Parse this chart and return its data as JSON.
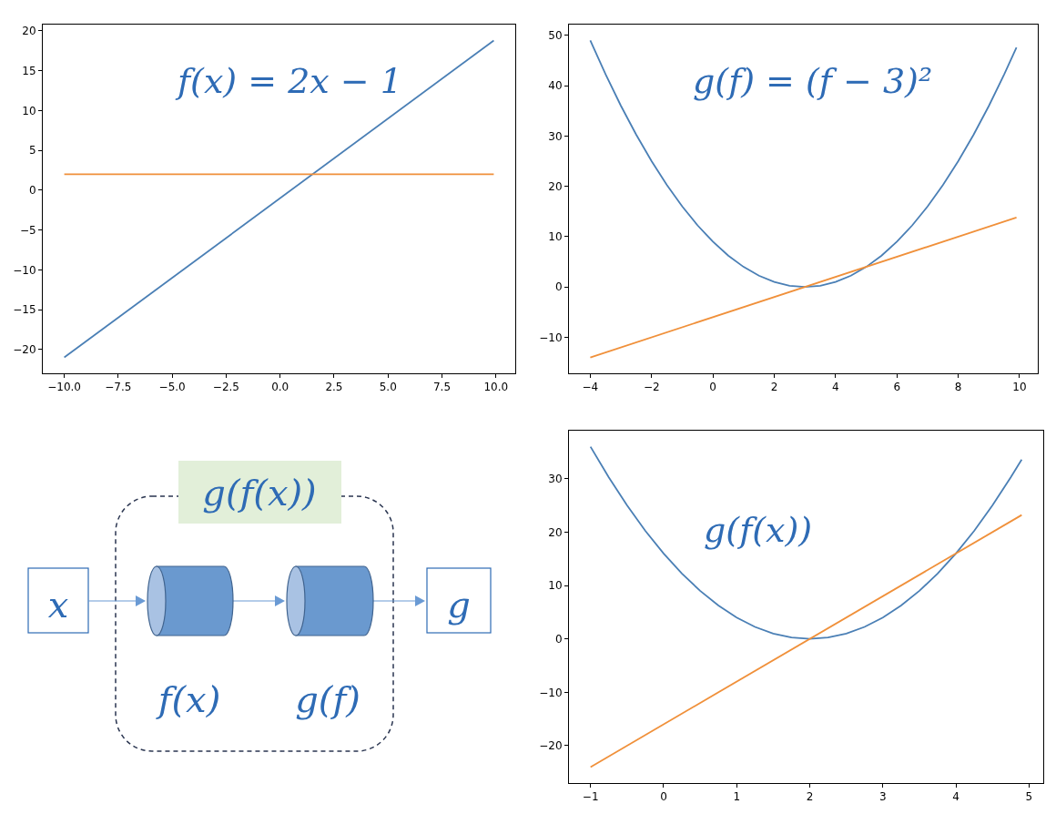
{
  "chart_data": [
    {
      "type": "line",
      "annotations": [
        "f(x) = 2x − 1"
      ],
      "grid": false,
      "legend": false,
      "marker": "none",
      "line_style": "solid",
      "xlim": [
        -10.995,
        10.895
      ],
      "ylim": [
        -22.99,
        20.79
      ],
      "xticks": [
        {
          "value": -10,
          "label": "−10.0"
        },
        {
          "value": -7.5,
          "label": "−7.5"
        },
        {
          "value": -5,
          "label": "−5.0"
        },
        {
          "value": -2.5,
          "label": "−2.5"
        },
        {
          "value": 0,
          "label": "0.0"
        },
        {
          "value": 2.5,
          "label": "2.5"
        },
        {
          "value": 5,
          "label": "5.0"
        },
        {
          "value": 7.5,
          "label": "7.5"
        },
        {
          "value": 10,
          "label": "10.0"
        }
      ],
      "yticks": [
        {
          "value": -20,
          "label": "−20"
        },
        {
          "value": -15,
          "label": "−15"
        },
        {
          "value": -10,
          "label": "−10"
        },
        {
          "value": -5,
          "label": "−5"
        },
        0,
        5,
        10,
        15,
        20
      ],
      "series": [
        {
          "color": "#4a7fb5",
          "x": [
            -10,
            9.9
          ],
          "values": [
            -21,
            18.8
          ]
        },
        {
          "color": "#f0903a",
          "x": [
            -10,
            9.9
          ],
          "values": [
            2,
            2
          ]
        }
      ]
    },
    {
      "type": "line",
      "annotations": [
        "g(f) = (f − 3)²"
      ],
      "grid": false,
      "legend": false,
      "marker": "none",
      "line_style": "solid",
      "xlim": [
        -4.695,
        10.595
      ],
      "ylim": [
        -17.15,
        52.15
      ],
      "xticks": [
        {
          "value": -4,
          "label": "−4"
        },
        {
          "value": -2,
          "label": "−2"
        },
        0,
        2,
        4,
        6,
        8,
        10
      ],
      "yticks": [
        {
          "value": -10,
          "label": "−10"
        },
        0,
        10,
        20,
        30,
        40,
        50
      ],
      "series": [
        {
          "color": "#4a7fb5",
          "x": [
            -4,
            -3.5,
            -3,
            -2.5,
            -2,
            -1.5,
            -1,
            -0.5,
            0,
            0.5,
            1,
            1.5,
            2,
            2.5,
            3,
            3.5,
            4,
            4.5,
            5,
            5.5,
            6,
            6.5,
            7,
            7.5,
            8,
            8.5,
            9,
            9.5,
            9.9
          ],
          "values": [
            49,
            42.25,
            36,
            30.25,
            25,
            20.25,
            16,
            12.25,
            9,
            6.25,
            4,
            2.25,
            1,
            0.25,
            0,
            0.25,
            1,
            2.25,
            4,
            6.25,
            9,
            12.25,
            16,
            20.25,
            25,
            30.25,
            36,
            42.25,
            47.6
          ]
        },
        {
          "color": "#f0903a",
          "x": [
            -4,
            9.9
          ],
          "values": [
            -14,
            13.8
          ]
        }
      ]
    },
    {
      "type": "other",
      "annotations": [
        "g(f(x))",
        "x",
        "f(x)",
        "g(f)",
        "g"
      ]
    },
    {
      "type": "line",
      "annotations": [
        "g(f(x))"
      ],
      "grid": false,
      "legend": false,
      "marker": "none",
      "line_style": "solid",
      "xlim": [
        -1.295,
        5.195
      ],
      "ylim": [
        -27,
        39
      ],
      "xticks": [
        {
          "value": -1,
          "label": "−1"
        },
        0,
        1,
        2,
        3,
        4,
        5
      ],
      "yticks": [
        {
          "value": -20,
          "label": "−20"
        },
        {
          "value": -10,
          "label": "−10"
        },
        0,
        10,
        20,
        30
      ],
      "series": [
        {
          "color": "#4a7fb5",
          "x": [
            -1,
            -0.75,
            -0.5,
            -0.25,
            0,
            0.25,
            0.5,
            0.75,
            1,
            1.25,
            1.5,
            1.75,
            2,
            2.25,
            2.5,
            2.75,
            3,
            3.25,
            3.5,
            3.75,
            4,
            4.25,
            4.5,
            4.75,
            4.9
          ],
          "values": [
            36,
            30.25,
            25,
            20.25,
            16,
            12.25,
            9,
            6.25,
            4,
            2.25,
            1,
            0.25,
            0,
            0.25,
            1,
            2.25,
            4,
            6.25,
            9,
            12.25,
            16,
            20.25,
            25,
            30.25,
            33.6
          ]
        },
        {
          "color": "#f0903a",
          "x": [
            -1,
            4.9
          ],
          "values": [
            -24,
            23.2
          ]
        }
      ]
    }
  ]
}
